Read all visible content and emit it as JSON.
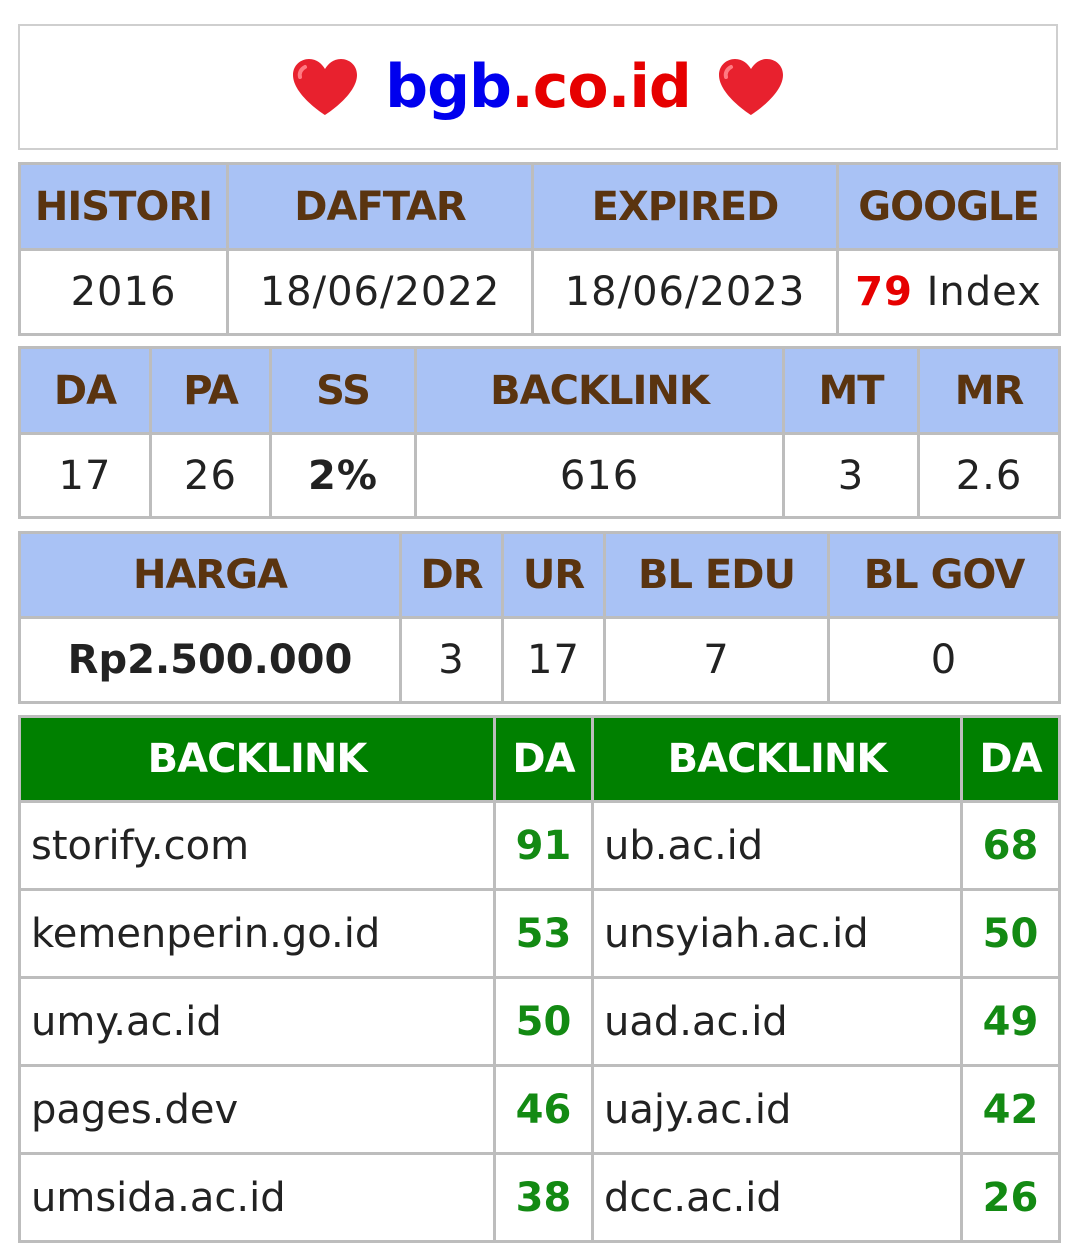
{
  "title": {
    "left_icon": "heart-icon",
    "brand_name": "bgb",
    "brand_tld": ".co.id",
    "right_icon": "heart-icon",
    "colors": {
      "name": "#0000ee",
      "tld": "#e60000",
      "heart": "#e8212e"
    }
  },
  "info_table": {
    "headers": [
      "HISTORI",
      "DAFTAR",
      "EXPIRED",
      "GOOGLE"
    ],
    "histori": "2016",
    "daftar": "18/06/2022",
    "expired": "18/06/2023",
    "google_count": "79",
    "google_suffix": "Index"
  },
  "metrics_table": {
    "headers": [
      "DA",
      "PA",
      "SS",
      "BACKLINK",
      "MT",
      "MR"
    ],
    "values": [
      "17",
      "26",
      "2%",
      "616",
      "3",
      "2.6"
    ]
  },
  "price_table": {
    "headers": [
      "HARGA",
      "DR",
      "UR",
      "BL EDU",
      "BL GOV"
    ],
    "values": [
      "Rp2.500.000",
      "3",
      "17",
      "7",
      "0"
    ]
  },
  "backlinks": {
    "headers": [
      "BACKLINK",
      "DA",
      "BACKLINK",
      "DA"
    ],
    "rows": [
      {
        "site1": "storify.com",
        "da1": "91",
        "site2": "ub.ac.id",
        "da2": "68"
      },
      {
        "site1": "kemenperin.go.id",
        "da1": "53",
        "site2": "unsyiah.ac.id",
        "da2": "50"
      },
      {
        "site1": "umy.ac.id",
        "da1": "50",
        "site2": "uad.ac.id",
        "da2": "49"
      },
      {
        "site1": "pages.dev",
        "da1": "46",
        "site2": "uajy.ac.id",
        "da2": "42"
      },
      {
        "site1": "umsida.ac.id",
        "da1": "38",
        "site2": "dcc.ac.id",
        "da2": "26"
      }
    ]
  },
  "colors": {
    "header_blue": "#a9c2f5",
    "header_text": "#5a3410",
    "header_green": "#008000",
    "accent_red": "#e60000",
    "accent_green": "#138a13"
  }
}
